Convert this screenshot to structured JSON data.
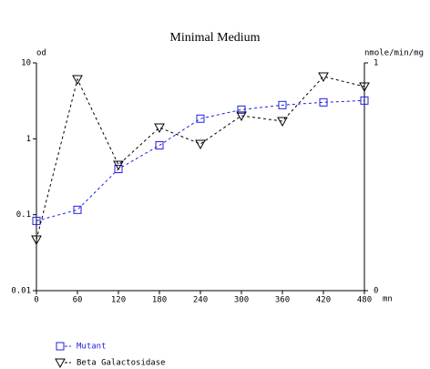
{
  "chart_data": {
    "type": "line",
    "title": "Minimal Medium",
    "x_label": "mn",
    "y_label": "od",
    "y2_label": "nmole/min/mg",
    "x": [
      0,
      60,
      120,
      180,
      240,
      300,
      360,
      420,
      480
    ],
    "xlim": [
      0,
      480
    ],
    "xticks": [
      0,
      60,
      120,
      180,
      240,
      300,
      360,
      420,
      480
    ],
    "ylim": [
      0.01,
      10
    ],
    "yticks": [
      0.01,
      0.1,
      1,
      10
    ],
    "ylog": true,
    "y2lim": [
      0,
      1
    ],
    "y2ticks": [
      0,
      1
    ],
    "series": [
      {
        "name": "Mutant",
        "color": "#2020e0",
        "marker": "square",
        "values": [
          0.083,
          0.116,
          0.4,
          0.82,
          1.84,
          2.42,
          2.78,
          3.02,
          3.19
        ]
      },
      {
        "name": "Beta Galactosidase",
        "color": "#000000",
        "marker": "triangle-down",
        "axis": "y2",
        "values": [
          0.224,
          0.928,
          0.552,
          0.716,
          0.644,
          0.768,
          0.744,
          0.94,
          0.896
        ]
      }
    ]
  }
}
